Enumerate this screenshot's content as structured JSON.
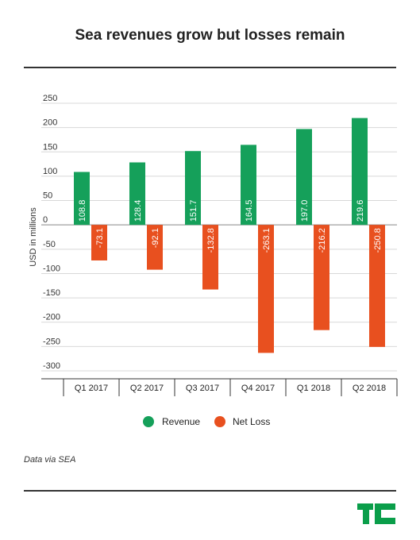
{
  "title": "Sea revenues grow but losses remain",
  "source": "Data via SEA",
  "colors": {
    "revenue": "#15a05a",
    "net_loss": "#e8501f",
    "grid": "#d8d8d8",
    "logo": "#0a9e4a"
  },
  "chart_data": {
    "type": "bar",
    "title": "Sea revenues grow but losses remain",
    "xlabel": "",
    "ylabel": "USD in millions",
    "ylim": [
      -300,
      250
    ],
    "yticks": [
      250,
      200,
      150,
      100,
      50,
      0,
      -50,
      -100,
      -150,
      -200,
      -250,
      -300
    ],
    "grid": true,
    "legend": "bottom-center",
    "categories": [
      "Q1 2017",
      "Q2 2017",
      "Q3 2017",
      "Q4 2017",
      "Q1 2018",
      "Q2 2018"
    ],
    "series": [
      {
        "name": "Revenue",
        "color": "#15a05a",
        "values": [
          108.8,
          128.4,
          151.7,
          164.5,
          197.0,
          219.6
        ],
        "labels": [
          "108.8",
          "128.4",
          "151.7",
          "164.5",
          "197.0",
          "219.6"
        ]
      },
      {
        "name": "Net Loss",
        "color": "#e8501f",
        "values": [
          -73.1,
          -92.1,
          -132.8,
          -263.1,
          -216.2,
          -250.8
        ],
        "labels": [
          "-73.1",
          "-92.1",
          "-132.8",
          "-263.1",
          "-216.2",
          "-250.8"
        ]
      }
    ]
  }
}
